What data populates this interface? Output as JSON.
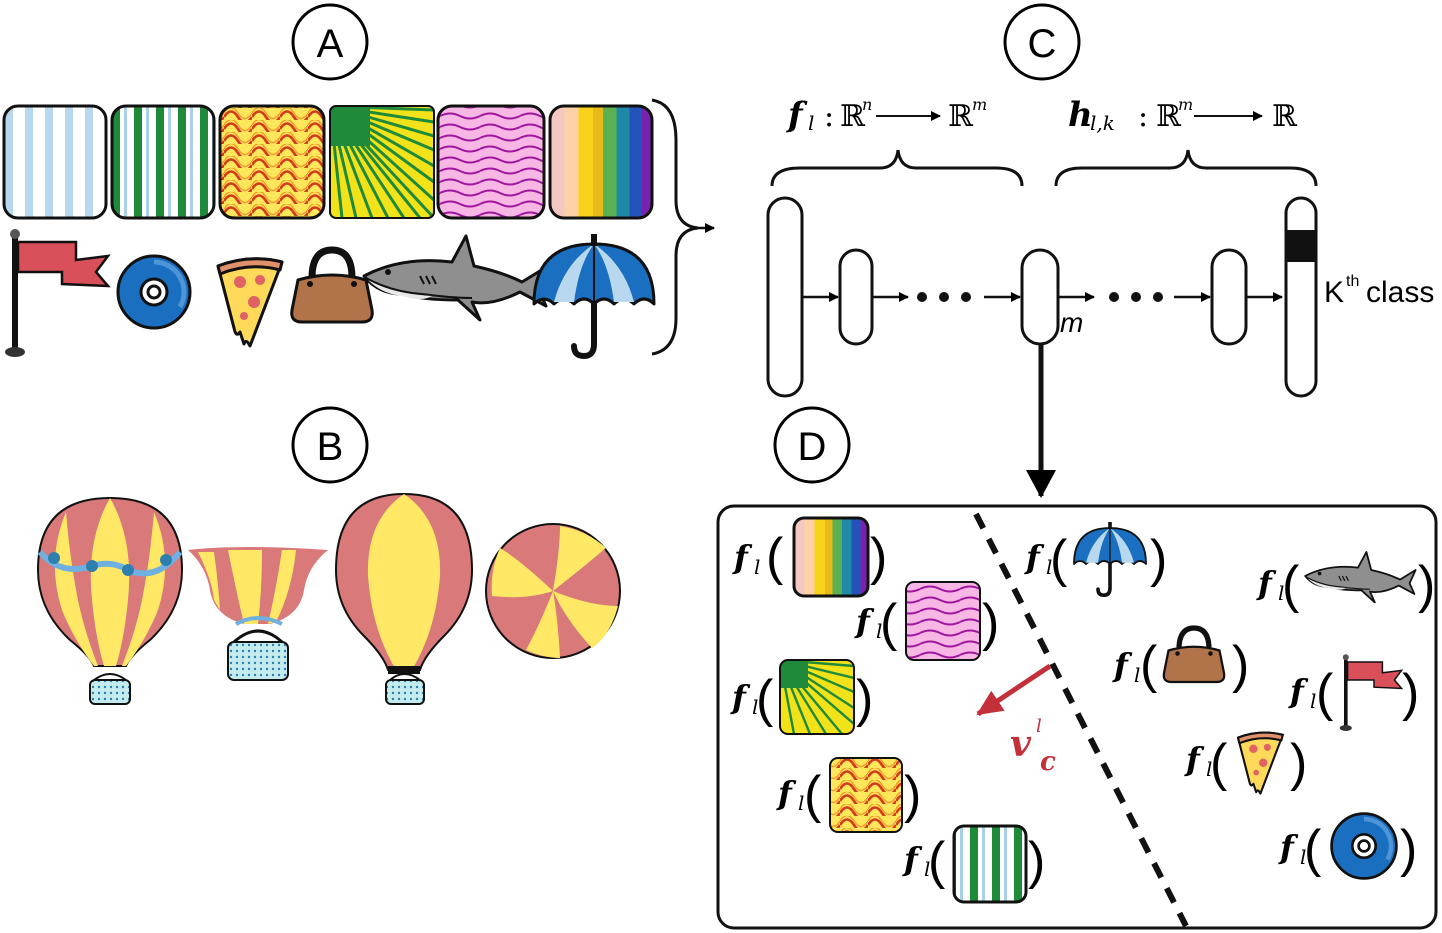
{
  "panels": {
    "a": "A",
    "b": "B",
    "c": "C",
    "d": "D"
  },
  "network": {
    "f_symbol": "f",
    "f_sub": "l",
    "f_domain": "ℝ",
    "f_domain_exp": "n",
    "f_codomain": "ℝ",
    "f_codomain_exp": "m",
    "h_symbol": "h",
    "h_sub": "l,k",
    "h_domain": "ℝ",
    "h_domain_exp": "m",
    "h_codomain": "ℝ",
    "colon": ":",
    "layer_size_label": "m",
    "output_label_k": "K",
    "output_label_th": "th",
    "output_label_class": "class"
  },
  "embedding": {
    "f_symbol": "f",
    "f_sub": "l",
    "cav_symbol": "v",
    "cav_sup": "l",
    "cav_sub": "c",
    "open_paren": "(",
    "close_paren": ")"
  },
  "colors": {
    "accent_red": "#c4303a",
    "flag_red": "#d9505a",
    "disc_blue": "#1a6fc0",
    "balloon_pink": "#d9797a",
    "balloon_yellow": "#ffe866",
    "green": "#1e8a3a",
    "light_blue": "#b8d8ef"
  },
  "icons": [
    "flag-icon",
    "disc-icon",
    "pizza-icon",
    "handbag-icon",
    "shark-icon",
    "umbrella-icon"
  ],
  "textures": [
    "vertical-stripes-blue",
    "vertical-stripes-green",
    "zigzag-yellow-red",
    "sunburst-green-yellow",
    "wavy-pink-purple",
    "rainbow-stripes"
  ]
}
